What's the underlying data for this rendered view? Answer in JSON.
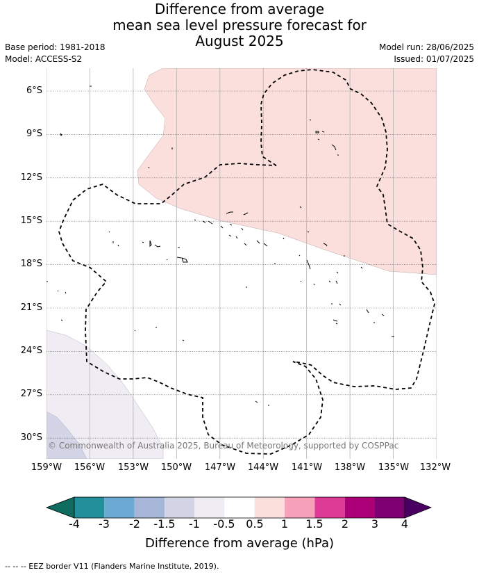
{
  "title": {
    "line1": "Difference from average",
    "line2": "mean sea level pressure forecast for",
    "line3": "August 2025"
  },
  "meta": {
    "base_period": "Base period: 1981-2018",
    "model": "Model: ACCESS-S2",
    "model_run": "Model run: 28/06/2025",
    "issued": "Issued: 01/07/2025"
  },
  "map": {
    "lat_labels": [
      "6°S",
      "9°S",
      "12°S",
      "15°S",
      "18°S",
      "21°S",
      "24°S",
      "27°S",
      "30°S"
    ],
    "lon_labels": [
      "159°W",
      "156°W",
      "153°W",
      "150°W",
      "147°W",
      "144°W",
      "141°W",
      "138°W",
      "135°W",
      "132°W"
    ],
    "copyright": "© Commonwealth of Australia 2025, Bureau of Meteorology, supported by COSPPac",
    "region_fills": {
      "positive_0_5_to_1": "#fbdfdd",
      "negative_0_5_to_1": "#f0ecf3",
      "negative_1_to_1_5": "#d3d4e6"
    }
  },
  "colorbar": {
    "title": "Difference from average (hPa)",
    "tick_labels": [
      "-4",
      "-3",
      "-2",
      "-1.5",
      "-1",
      "-0.5",
      "0.5",
      "1",
      "1.5",
      "2",
      "3",
      "4"
    ],
    "low_extend_color": "#0e6b5f",
    "high_extend_color": "#4a0062",
    "bin_colors": [
      "#21909a",
      "#6aaad2",
      "#a5b6d9",
      "#d3d4e6",
      "#f0ecf3",
      "#ffffff",
      "#fbdfdd",
      "#f7a0b9",
      "#de3b96",
      "#ad0078",
      "#7f0073"
    ]
  },
  "footer": {
    "legend_text": "--  --  -- EEZ border V11 (Flanders Marine Institute, 2019)."
  }
}
